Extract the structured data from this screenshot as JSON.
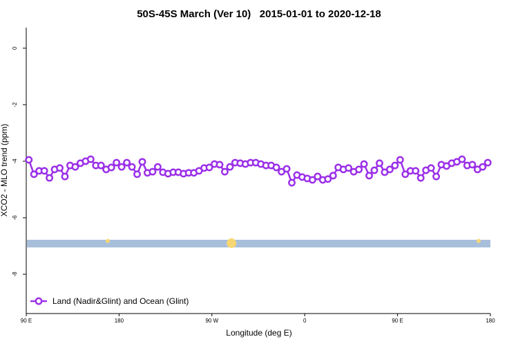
{
  "chart_data": {
    "type": "line",
    "title": "50S-45S March (Ver 10)   2015-01-01 to 2020-12-18",
    "x_label": "Longitude (deg E)",
    "y_label": "XCO2 - MLO trend (ppm)",
    "xlim": [
      90,
      540
    ],
    "ylim": [
      -9.39,
      0.73
    ],
    "xticks": [
      {
        "value": 90,
        "label": "90 E"
      },
      180,
      {
        "value": 270,
        "label": "90 W"
      },
      {
        "value": 360,
        "label": "0"
      },
      {
        "value": 450,
        "label": "90 E"
      },
      {
        "value": 540,
        "label": "180"
      }
    ],
    "yticks": [
      0,
      -2,
      -4,
      -6,
      -8
    ],
    "legend": "bottom-left",
    "x": [
      92.5,
      97.5,
      102.5,
      107.5,
      112.5,
      117.5,
      122.5,
      127.5,
      132.5,
      137.5,
      142.5,
      147.5,
      152.5,
      157.5,
      162.5,
      167.5,
      172.5,
      177.5,
      182.5,
      187.5,
      192.5,
      197.5,
      202.5,
      207.5,
      212.5,
      217.5,
      222.5,
      227.5,
      232.5,
      237.5,
      242.5,
      247.5,
      252.5,
      257.5,
      262.5,
      267.5,
      272.5,
      277.5,
      282.5,
      287.5,
      292.5,
      297.5,
      302.5,
      307.5,
      312.5,
      317.5,
      322.5,
      327.5,
      332.5,
      337.5,
      342.5,
      347.5,
      352.5,
      357.5,
      362.5,
      367.5,
      372.5,
      377.5,
      382.5,
      387.5,
      392.5,
      397.5,
      402.5,
      407.5,
      412.5,
      417.5,
      422.5,
      427.5,
      432.5,
      437.5,
      442.5,
      447.5,
      452.5,
      457.5,
      462.5,
      467.5,
      472.5,
      477.5,
      482.5,
      487.5,
      492.5,
      497.5,
      502.5,
      507.5,
      512.5,
      517.5,
      522.5,
      527.5,
      532.5,
      537.5
    ],
    "series": [
      {
        "name": "Land (Nadir&Glint) and Ocean (Glint)",
        "color": "#9b30e8",
        "values": [
          -3.95,
          -4.46,
          -4.34,
          -4.34,
          -4.59,
          -4.29,
          -4.24,
          -4.54,
          -4.15,
          -4.2,
          -4.07,
          -4.0,
          -3.93,
          -4.15,
          -4.15,
          -4.29,
          -4.22,
          -4.05,
          -4.2,
          -4.05,
          -4.2,
          -4.46,
          -4.02,
          -4.41,
          -4.37,
          -4.2,
          -4.39,
          -4.44,
          -4.39,
          -4.39,
          -4.44,
          -4.41,
          -4.41,
          -4.34,
          -4.24,
          -4.22,
          -4.1,
          -4.12,
          -4.37,
          -4.2,
          -4.05,
          -4.07,
          -4.1,
          -4.05,
          -4.05,
          -4.1,
          -4.15,
          -4.15,
          -4.22,
          -4.37,
          -4.27,
          -4.76,
          -4.49,
          -4.56,
          -4.61,
          -4.66,
          -4.54,
          -4.66,
          -4.63,
          -4.51,
          -4.22,
          -4.29,
          -4.24,
          -4.37,
          -4.29,
          -4.1,
          -4.51,
          -4.32,
          -4.07,
          -4.39,
          -4.29,
          -4.15,
          -3.95,
          -4.46,
          -4.34,
          -4.34,
          -4.59,
          -4.32,
          -4.24,
          -4.54,
          -4.12,
          -4.17,
          -4.07,
          -4.02,
          -3.93,
          -4.15,
          -4.12,
          -4.29,
          -4.2,
          -4.05
        ]
      }
    ],
    "coverage_band": {
      "ymin": -7.05,
      "ymax": -6.78,
      "color": "#a8bfdc"
    },
    "coverage_spots": {
      "x": [
        169,
        289,
        528.6
      ],
      "y": [
        -6.82,
        -6.9,
        -6.82
      ],
      "sizes": [
        3,
        7,
        3
      ],
      "color": "#f7d774"
    }
  }
}
